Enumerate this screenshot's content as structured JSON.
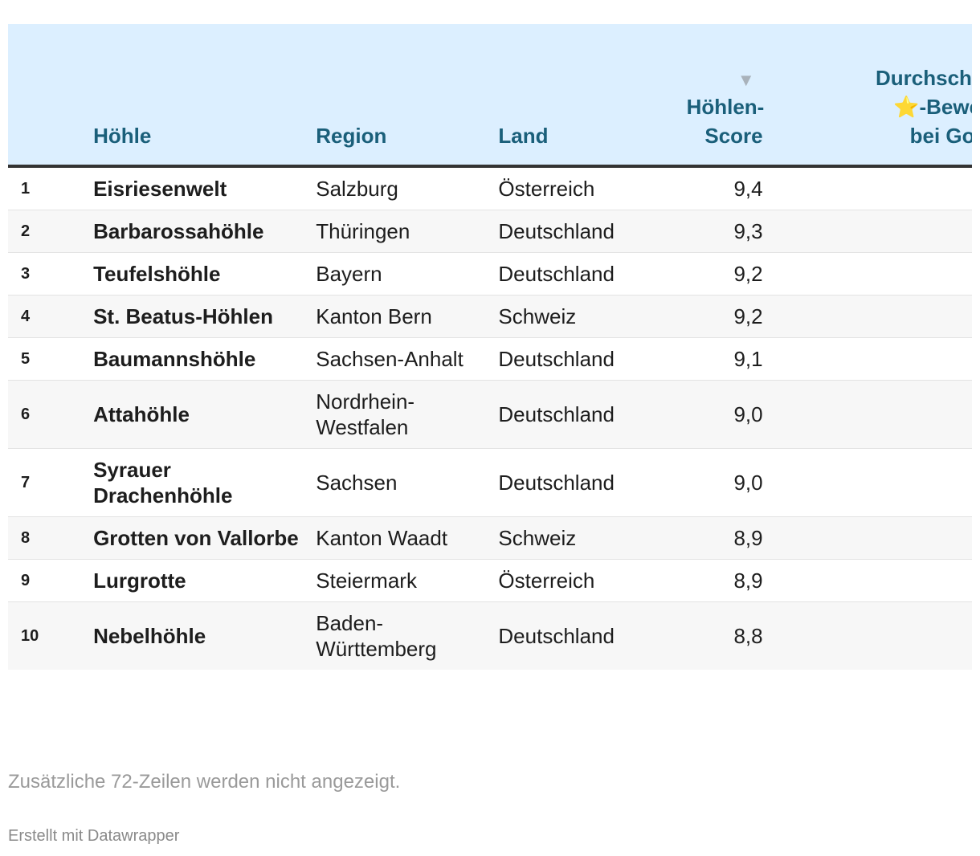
{
  "table": {
    "headers": {
      "rank": "",
      "cave": "Höhle",
      "region": "Region",
      "country": "Land",
      "score_line1": "Höhlen-",
      "score_line2": "Score",
      "sort_indicator": "▼",
      "rating_line1": "Durchschnittliche",
      "rating_star": "⭐",
      "rating_line2": "-Bewertung",
      "rating_line3": "bei Google"
    },
    "rows": [
      {
        "rank": "1",
        "name": "Eisriesenwelt",
        "region": "Salzburg",
        "country": "Österreich",
        "score": "9,4"
      },
      {
        "rank": "2",
        "name": "Barbarossahöhle",
        "region": "Thüringen",
        "country": "Deutschland",
        "score": "9,3"
      },
      {
        "rank": "3",
        "name": "Teufelshöhle",
        "region": "Bayern",
        "country": "Deutschland",
        "score": "9,2"
      },
      {
        "rank": "4",
        "name": "St. Beatus-Höhlen",
        "region": "Kanton Bern",
        "country": "Schweiz",
        "score": "9,2"
      },
      {
        "rank": "5",
        "name": "Baumannshöhle",
        "region": "Sachsen-Anhalt",
        "country": "Deutschland",
        "score": "9,1"
      },
      {
        "rank": "6",
        "name": "Attahöhle",
        "region": "Nordrhein-Westfalen",
        "country": "Deutschland",
        "score": "9,0"
      },
      {
        "rank": "7",
        "name": "Syrauer Drachenhöhle",
        "region": "Sachsen",
        "country": "Deutschland",
        "score": "9,0"
      },
      {
        "rank": "8",
        "name": "Grotten von Vallorbe",
        "region": "Kanton Waadt",
        "country": "Schweiz",
        "score": "8,9"
      },
      {
        "rank": "9",
        "name": "Lurgrotte",
        "region": "Steiermark",
        "country": "Österreich",
        "score": "8,9"
      },
      {
        "rank": "10",
        "name": "Nebelhöhle",
        "region": "Baden-Württemberg",
        "country": "Deutschland",
        "score": "8,8"
      }
    ]
  },
  "footer": {
    "note": "Zusätzliche 72-Zeilen werden nicht angezeigt.",
    "credit": "Erstellt mit Datawrapper"
  },
  "colors": {
    "header_bg": "#dcefff",
    "header_text": "#1a5f7a",
    "stripe": "#f7f7f7"
  }
}
